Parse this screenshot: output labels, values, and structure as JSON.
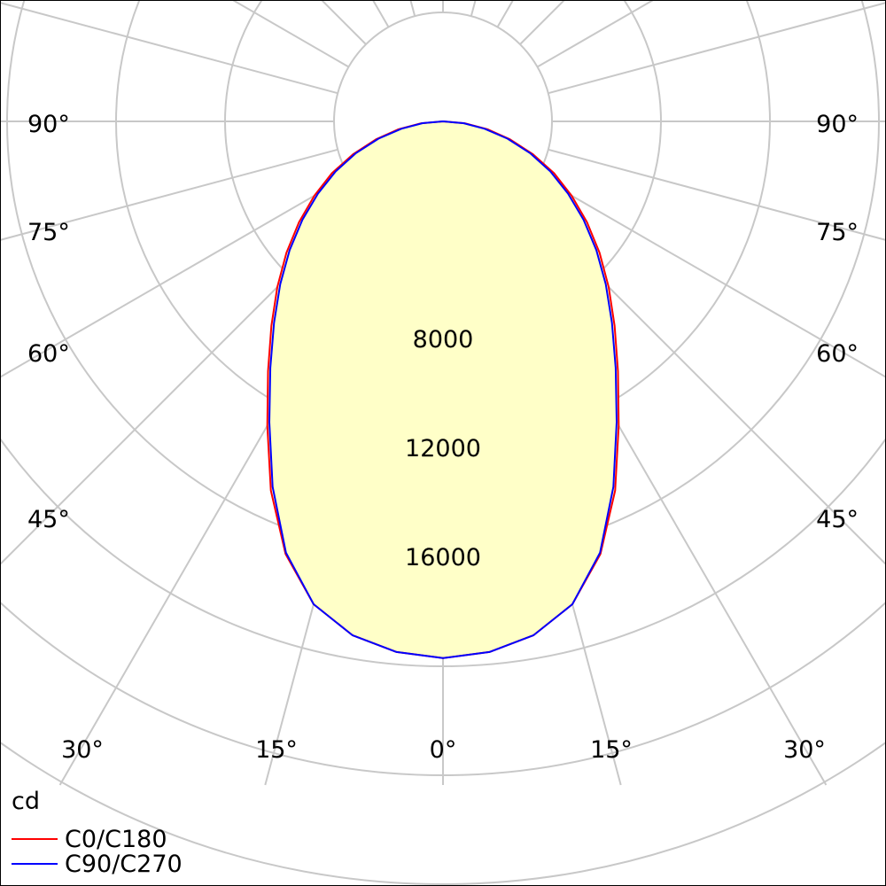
{
  "chart_data": {
    "type": "polar",
    "unit": "cd",
    "radial_ticks": [
      4000,
      8000,
      12000,
      16000,
      20000
    ],
    "radial_tick_labels": [
      "8000",
      "12000",
      "16000"
    ],
    "angle_labels": {
      "bottom": [
        "30°",
        "15°",
        "0°",
        "15°",
        "30°"
      ],
      "left": [
        "90°",
        "75°",
        "60°",
        "45°"
      ],
      "right": [
        "90°",
        "75°",
        "60°",
        "45°"
      ]
    },
    "rmax": 20000,
    "grid": true,
    "legend_position": "bottom-left",
    "fill_color": "#ffffc8",
    "series": [
      {
        "name": "C0/C180",
        "color": "#ff0000",
        "angles_deg": [
          0,
          5,
          10,
          15,
          20,
          25,
          30,
          35,
          40,
          45,
          50,
          55,
          60,
          65,
          70,
          75,
          80,
          85,
          90
        ],
        "values": [
          19700,
          19550,
          19150,
          18350,
          16900,
          14950,
          12900,
          11200,
          9800,
          8600,
          7500,
          6450,
          5450,
          4500,
          3500,
          2550,
          1650,
          800,
          0
        ]
      },
      {
        "name": "C90/C270",
        "color": "#0000ff",
        "angles_deg": [
          0,
          5,
          10,
          15,
          20,
          25,
          30,
          35,
          40,
          45,
          50,
          55,
          60,
          65,
          70,
          75,
          80,
          85,
          90
        ],
        "values": [
          19700,
          19550,
          19150,
          18350,
          16850,
          14800,
          12750,
          11050,
          9650,
          8450,
          7350,
          6300,
          5300,
          4350,
          3400,
          2450,
          1550,
          750,
          0
        ]
      }
    ]
  },
  "legend": {
    "unit_label": "cd",
    "items": [
      {
        "label": "C0/C180",
        "color": "#ff0000"
      },
      {
        "label": "C90/C270",
        "color": "#0000ff"
      }
    ]
  }
}
